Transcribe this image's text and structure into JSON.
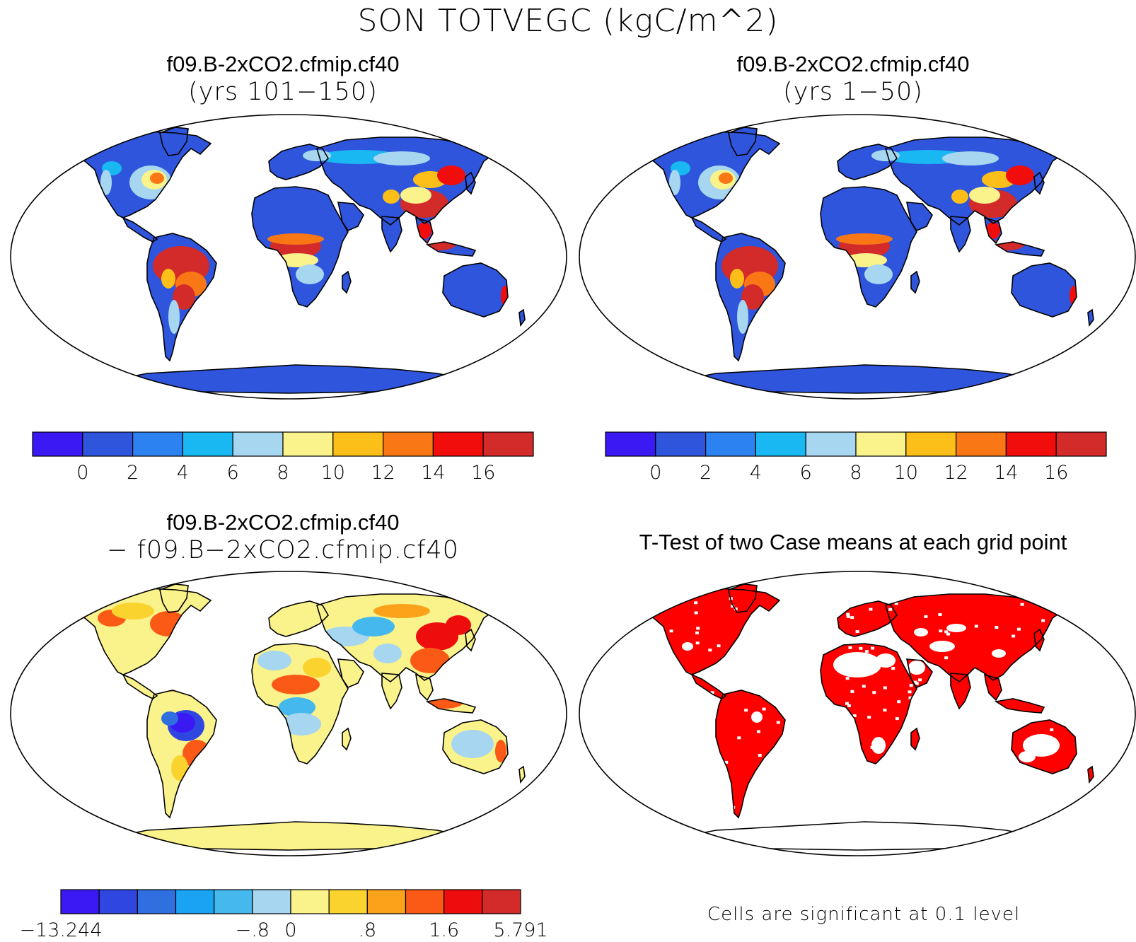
{
  "figure": {
    "title": "SON TOTVEGC (kgC/m^2)"
  },
  "panels": [
    {
      "line1": "f09.B-2xCO2.cfmip.cf40",
      "line2": "(yrs 101−150)",
      "scheme": "abs",
      "ocean": "#ffffff",
      "ice": "#ffffff"
    },
    {
      "line1": "f09.B-2xCO2.cfmip.cf40",
      "line2": "(yrs 1−50)",
      "scheme": "abs",
      "ocean": "#ffffff",
      "ice": "#ffffff"
    },
    {
      "line1": "f09.B-2xCO2.cfmip.cf40",
      "line2": "− f09.B−2xCO2.cfmip.cf40",
      "scheme": "diff"
    },
    {
      "line1": "T-Test of two Case means at each grid point",
      "line2": "",
      "scheme": "ttest",
      "sig_color": "#ff0000"
    }
  ],
  "colorbars": {
    "abs": {
      "colors": [
        "#3a19f2",
        "#2f55dc",
        "#2c82f0",
        "#1ab8f3",
        "#a6d6f0",
        "#faf28a",
        "#fcbf1a",
        "#fa7716",
        "#f20d0d",
        "#d32a2a"
      ],
      "labels": [
        "0",
        "2",
        "4",
        "6",
        "8",
        "10",
        "12",
        "14",
        "16"
      ]
    },
    "diff": {
      "colors": [
        "#3a19f2",
        "#2f47e0",
        "#2f6fe0",
        "#1aa3f3",
        "#45b8ee",
        "#a6d6f0",
        "#faf28a",
        "#fbd32e",
        "#fba21a",
        "#fb5a16",
        "#ee0d0d",
        "#d32a2a"
      ],
      "labels": [
        "−13.244",
        "",
        "",
        "",
        "",
        "−.8",
        "0",
        "",
        ".8",
        "",
        "1.6",
        "",
        "5.791"
      ]
    }
  },
  "note": "Cells are significant at 0.1 level"
}
